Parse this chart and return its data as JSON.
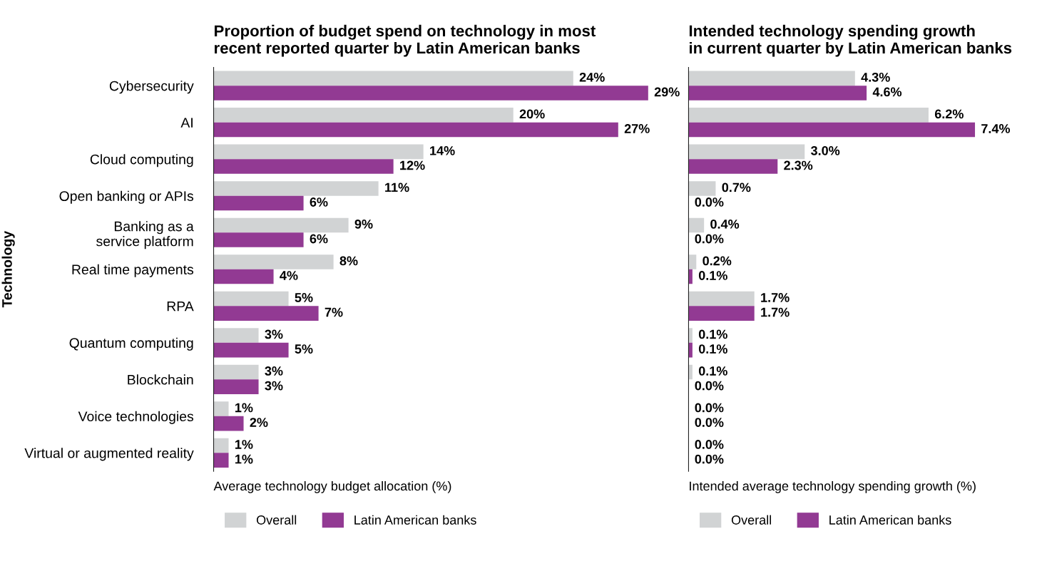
{
  "chart_data": [
    {
      "type": "bar",
      "orientation": "horizontal",
      "title": "Proportion of budget spend on technology in most\nrecent reported quarter by Latin American banks",
      "xlabel": "Average technology budget allocation (%)",
      "ylabel": "Technology",
      "categories": [
        "Cybersecurity",
        "AI",
        "Cloud computing",
        "Open banking or APIs",
        "Banking as a\nservice platform",
        "Real time payments",
        "RPA",
        "Quantum computing",
        "Blockchain",
        "Voice technologies",
        "Virtual or augmented reality"
      ],
      "series": [
        {
          "name": "Overall",
          "color": "#d1d3d4",
          "values": [
            24,
            20,
            14,
            11,
            9,
            8,
            5,
            3,
            3,
            1,
            1
          ],
          "value_labels": [
            "24%",
            "20%",
            "14%",
            "11%",
            "9%",
            "8%",
            "5%",
            "3%",
            "3%",
            "1%",
            "1%"
          ]
        },
        {
          "name": "Latin American banks",
          "color": "#923a93",
          "values": [
            29,
            27,
            12,
            6,
            6,
            4,
            7,
            5,
            3,
            2,
            1
          ],
          "value_labels": [
            "29%",
            "27%",
            "12%",
            "6%",
            "6%",
            "4%",
            "7%",
            "5%",
            "3%",
            "2%",
            "1%"
          ]
        }
      ],
      "tick_labels": "y",
      "legend": "bottom",
      "grid": false
    },
    {
      "type": "bar",
      "orientation": "horizontal",
      "title": "Intended technology spending growth\nin current quarter by Latin American banks",
      "xlabel": "Intended average technology spending growth (%)",
      "categories": [
        null,
        null,
        null,
        null,
        null,
        null,
        null,
        null,
        null,
        null,
        null
      ],
      "series": [
        {
          "name": "Overall",
          "color": "#d1d3d4",
          "values": [
            4.3,
            6.2,
            3.0,
            0.7,
            0.4,
            0.2,
            1.7,
            0.1,
            0.1,
            0.0,
            0.0
          ],
          "value_labels": [
            "4.3%",
            "6.2%",
            "3.0%",
            "0.7%",
            "0.4%",
            "0.2%",
            "1.7%",
            "0.1%",
            "0.1%",
            "0.0%",
            "0.0%"
          ]
        },
        {
          "name": "Latin American banks",
          "color": "#923a93",
          "values": [
            4.6,
            7.4,
            2.3,
            0.0,
            0.0,
            0.1,
            1.7,
            0.1,
            0.0,
            0.0,
            0.0
          ],
          "value_labels": [
            "4.6%",
            "7.4%",
            "2.3%",
            "0.0%",
            "0.0%",
            "0.1%",
            "1.7%",
            "0.1%",
            "0.0%",
            "0.0%",
            "0.0%"
          ]
        }
      ],
      "tick_labels": false,
      "legend": "bottom",
      "grid": false
    }
  ]
}
